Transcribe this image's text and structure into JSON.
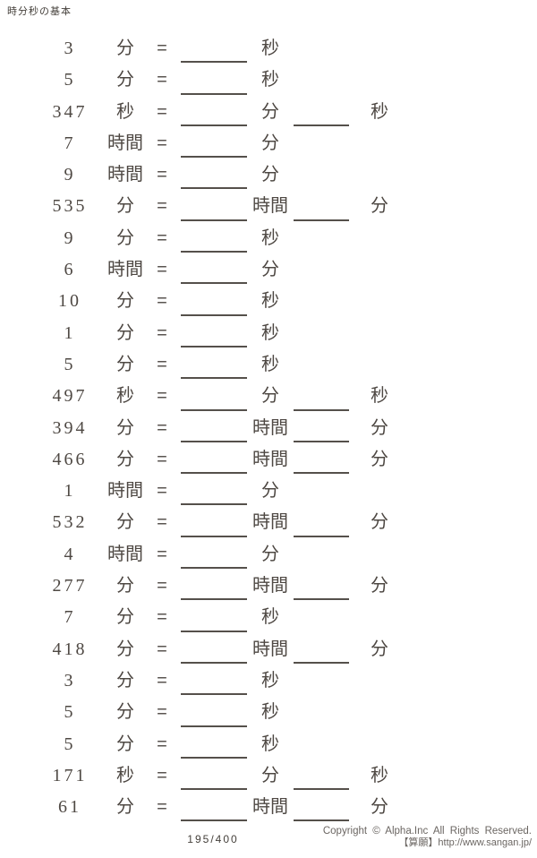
{
  "title": "時分秒の基本",
  "equals_sign": "=",
  "problems": [
    {
      "value": "3",
      "unit": "分",
      "answers": [
        {
          "unit": "秒"
        }
      ]
    },
    {
      "value": "5",
      "unit": "分",
      "answers": [
        {
          "unit": "秒"
        }
      ]
    },
    {
      "value": "347",
      "unit": "秒",
      "answers": [
        {
          "unit": "分"
        },
        {
          "unit": "秒"
        }
      ]
    },
    {
      "value": "7",
      "unit": "時間",
      "answers": [
        {
          "unit": "分"
        }
      ]
    },
    {
      "value": "9",
      "unit": "時間",
      "answers": [
        {
          "unit": "分"
        }
      ]
    },
    {
      "value": "535",
      "unit": "分",
      "answers": [
        {
          "unit": "時間"
        },
        {
          "unit": "分"
        }
      ]
    },
    {
      "value": "9",
      "unit": "分",
      "answers": [
        {
          "unit": "秒"
        }
      ]
    },
    {
      "value": "6",
      "unit": "時間",
      "answers": [
        {
          "unit": "分"
        }
      ]
    },
    {
      "value": "10",
      "unit": "分",
      "answers": [
        {
          "unit": "秒"
        }
      ]
    },
    {
      "value": "1",
      "unit": "分",
      "answers": [
        {
          "unit": "秒"
        }
      ]
    },
    {
      "value": "5",
      "unit": "分",
      "answers": [
        {
          "unit": "秒"
        }
      ]
    },
    {
      "value": "497",
      "unit": "秒",
      "answers": [
        {
          "unit": "分"
        },
        {
          "unit": "秒"
        }
      ]
    },
    {
      "value": "394",
      "unit": "分",
      "answers": [
        {
          "unit": "時間"
        },
        {
          "unit": "分"
        }
      ]
    },
    {
      "value": "466",
      "unit": "分",
      "answers": [
        {
          "unit": "時間"
        },
        {
          "unit": "分"
        }
      ]
    },
    {
      "value": "1",
      "unit": "時間",
      "answers": [
        {
          "unit": "分"
        }
      ]
    },
    {
      "value": "532",
      "unit": "分",
      "answers": [
        {
          "unit": "時間"
        },
        {
          "unit": "分"
        }
      ]
    },
    {
      "value": "4",
      "unit": "時間",
      "answers": [
        {
          "unit": "分"
        }
      ]
    },
    {
      "value": "277",
      "unit": "分",
      "answers": [
        {
          "unit": "時間"
        },
        {
          "unit": "分"
        }
      ]
    },
    {
      "value": "7",
      "unit": "分",
      "answers": [
        {
          "unit": "秒"
        }
      ]
    },
    {
      "value": "418",
      "unit": "分",
      "answers": [
        {
          "unit": "時間"
        },
        {
          "unit": "分"
        }
      ]
    },
    {
      "value": "3",
      "unit": "分",
      "answers": [
        {
          "unit": "秒"
        }
      ]
    },
    {
      "value": "5",
      "unit": "分",
      "answers": [
        {
          "unit": "秒"
        }
      ]
    },
    {
      "value": "5",
      "unit": "分",
      "answers": [
        {
          "unit": "秒"
        }
      ]
    },
    {
      "value": "171",
      "unit": "秒",
      "answers": [
        {
          "unit": "分"
        },
        {
          "unit": "秒"
        }
      ]
    },
    {
      "value": "61",
      "unit": "分",
      "answers": [
        {
          "unit": "時間"
        },
        {
          "unit": "分"
        }
      ]
    }
  ],
  "footer": {
    "page_number": "195/400",
    "copyright": "Copyright © Alpha.Inc All Rights Reserved.",
    "credit": "【算願】http://www.sangan.jp/"
  },
  "colors": {
    "text": "#4e4843",
    "line": "#55504b",
    "footer_text": "#6b6662"
  }
}
